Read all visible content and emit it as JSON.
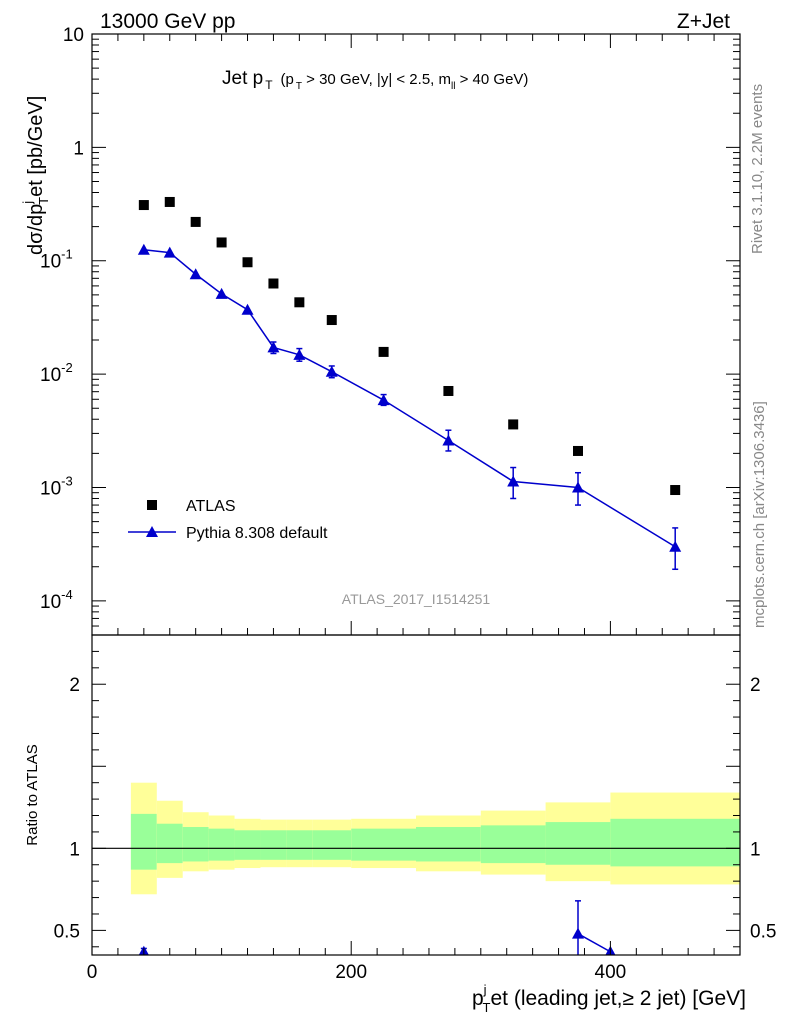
{
  "header": {
    "left": "13000 GeV pp",
    "right": "Z+Jet"
  },
  "plot_title": {
    "main": "Jet p",
    "main_sub": "T",
    "cuts_a": "(p",
    "cuts_a_sub": "T",
    "cuts_b": " > 30 GeV, |y| < 2.5, m",
    "cuts_b_sub": "ll",
    "cuts_c": " > 40 GeV)"
  },
  "y_axis_title": {
    "pre": "dσ/dp",
    "sup": "j",
    "sub": "T",
    "post": "et [pb/GeV]"
  },
  "x_axis_title": {
    "p": "p",
    "sup": "j",
    "sub": "T",
    "post": "et (leading jet,≥ 2 jet) [GeV]"
  },
  "ratio_axis_title": "Ratio to ATLAS",
  "analysis_label": "ATLAS_2017_I1514251",
  "side_labels": {
    "rivet": "Rivet 3.1.10,  2.2M events",
    "source": "mcplots.cern.ch [arXiv:1306.3436]"
  },
  "legend": {
    "placement": "bottom-left",
    "items": [
      {
        "label": "ATLAS",
        "color": "#000000",
        "marker": "square"
      },
      {
        "label": "Pythia 8.308 default",
        "color": "#0000cc",
        "marker": "triangle"
      }
    ]
  },
  "colors": {
    "data": "#000000",
    "mc": "#0000cc",
    "band_inner": "#99ff99",
    "band_outer": "#ffff99"
  },
  "chart_data": [
    {
      "type": "scatter",
      "yscale": "log",
      "xlim": [
        0,
        500
      ],
      "ylim": [
        5e-05,
        10
      ],
      "y_ticks": [
        {
          "value": 0.0001,
          "label": "10",
          "exp": "-4"
        },
        {
          "value": 0.001,
          "label": "10",
          "exp": "-3"
        },
        {
          "value": 0.01,
          "label": "10",
          "exp": "-2"
        },
        {
          "value": 0.1,
          "label": "10",
          "exp": "-1"
        },
        {
          "value": 1,
          "label": "1",
          "exp": ""
        },
        {
          "value": 10,
          "label": "10",
          "exp": ""
        }
      ],
      "series": [
        {
          "name": "ATLAS",
          "marker": "square",
          "x": [
            40,
            60,
            80,
            100,
            120,
            140,
            160,
            185,
            225,
            275,
            325,
            375,
            450
          ],
          "y": [
            0.31,
            0.33,
            0.22,
            0.145,
            0.097,
            0.063,
            0.043,
            0.03,
            0.0157,
            0.0071,
            0.0036,
            0.0021,
            0.00095
          ]
        },
        {
          "name": "Pythia 8.308 default",
          "marker": "triangle",
          "x": [
            40,
            60,
            80,
            100,
            120,
            140,
            160,
            185,
            225,
            275,
            325,
            375,
            450
          ],
          "y": [
            0.125,
            0.118,
            0.076,
            0.051,
            0.037,
            0.0172,
            0.0148,
            0.0105,
            0.0059,
            0.0026,
            0.00113,
            0.001,
            0.0003
          ],
          "y_err_low": [
            0.125,
            0.118,
            0.076,
            0.051,
            0.037,
            0.0152,
            0.013,
            0.0093,
            0.0053,
            0.0021,
            0.0008,
            0.0007,
            0.00019
          ],
          "y_err_high": [
            0.125,
            0.118,
            0.076,
            0.051,
            0.037,
            0.0192,
            0.0168,
            0.0118,
            0.0066,
            0.0032,
            0.0015,
            0.00135,
            0.00044
          ]
        }
      ]
    },
    {
      "type": "line",
      "xlim": [
        0,
        500
      ],
      "ylim": [
        0.35,
        2.3
      ],
      "x_ticks": [
        0,
        200,
        400
      ],
      "y_ticks": [
        0.5,
        1,
        2
      ],
      "reference_line": 1,
      "bands": [
        {
          "x_low": 30,
          "x_high": 50,
          "inner": [
            0.87,
            1.21
          ],
          "outer": [
            0.72,
            1.4
          ]
        },
        {
          "x_low": 50,
          "x_high": 70,
          "inner": [
            0.91,
            1.15
          ],
          "outer": [
            0.82,
            1.29
          ]
        },
        {
          "x_low": 70,
          "x_high": 90,
          "inner": [
            0.92,
            1.13
          ],
          "outer": [
            0.86,
            1.22
          ]
        },
        {
          "x_low": 90,
          "x_high": 110,
          "inner": [
            0.925,
            1.12
          ],
          "outer": [
            0.87,
            1.2
          ]
        },
        {
          "x_low": 110,
          "x_high": 130,
          "inner": [
            0.93,
            1.11
          ],
          "outer": [
            0.88,
            1.18
          ]
        },
        {
          "x_low": 130,
          "x_high": 150,
          "inner": [
            0.93,
            1.11
          ],
          "outer": [
            0.885,
            1.175
          ]
        },
        {
          "x_low": 150,
          "x_high": 170,
          "inner": [
            0.93,
            1.11
          ],
          "outer": [
            0.885,
            1.175
          ]
        },
        {
          "x_low": 170,
          "x_high": 200,
          "inner": [
            0.93,
            1.11
          ],
          "outer": [
            0.885,
            1.175
          ]
        },
        {
          "x_low": 200,
          "x_high": 250,
          "inner": [
            0.925,
            1.12
          ],
          "outer": [
            0.88,
            1.18
          ]
        },
        {
          "x_low": 250,
          "x_high": 300,
          "inner": [
            0.92,
            1.13
          ],
          "outer": [
            0.86,
            1.2
          ]
        },
        {
          "x_low": 300,
          "x_high": 350,
          "inner": [
            0.91,
            1.14
          ],
          "outer": [
            0.84,
            1.23
          ]
        },
        {
          "x_low": 350,
          "x_high": 400,
          "inner": [
            0.9,
            1.16
          ],
          "outer": [
            0.8,
            1.28
          ]
        },
        {
          "x_low": 400,
          "x_high": 500,
          "inner": [
            0.89,
            1.18
          ],
          "outer": [
            0.78,
            1.34
          ]
        }
      ],
      "series": [
        {
          "name": "Pythia 8.308 default",
          "x": [
            40,
            375,
            400
          ],
          "y": [
            0.37,
            0.48,
            0.37
          ],
          "y_err_low": [
            0.35,
            0.29,
            0.37
          ],
          "y_err_high": [
            0.39,
            0.68,
            0.37
          ]
        }
      ]
    }
  ]
}
